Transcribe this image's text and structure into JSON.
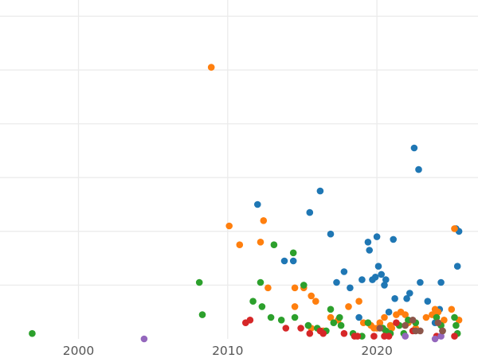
{
  "chart_data": {
    "type": "scatter",
    "title": "",
    "xlabel": "",
    "ylabel": "",
    "xlim": [
      1995,
      2027.5
    ],
    "ylim": [
      0,
      6.3
    ],
    "x_ticks": [
      2000,
      2010,
      2020
    ],
    "x_tick_labels": [
      "2000",
      "2010",
      "2020"
    ],
    "x_gridlines": [
      2000,
      2010,
      2020
    ],
    "y_gridlines": [
      1,
      2,
      3,
      4,
      5,
      6
    ],
    "y_tick_labels_visible": false,
    "legend": "none",
    "series": [
      {
        "name": "blue",
        "color": "#1f77b4",
        "points": [
          [
            2012.0,
            2.5
          ],
          [
            2013.8,
            1.45
          ],
          [
            2014.4,
            1.45
          ],
          [
            2015.5,
            2.35
          ],
          [
            2016.2,
            2.75
          ],
          [
            2016.9,
            1.95
          ],
          [
            2017.3,
            1.05
          ],
          [
            2017.8,
            1.25
          ],
          [
            2018.2,
            0.95
          ],
          [
            2019.0,
            1.1
          ],
          [
            2019.4,
            1.8
          ],
          [
            2019.5,
            1.65
          ],
          [
            2019.9,
            1.15
          ],
          [
            2020.0,
            1.9
          ],
          [
            2020.1,
            1.35
          ],
          [
            2020.3,
            1.2
          ],
          [
            2020.5,
            1.0
          ],
          [
            2020.6,
            1.1
          ],
          [
            2020.8,
            0.5
          ],
          [
            2021.1,
            1.85
          ],
          [
            2021.2,
            0.75
          ],
          [
            2022.0,
            0.75
          ],
          [
            2022.2,
            0.85
          ],
          [
            2022.5,
            3.55
          ],
          [
            2022.8,
            3.15
          ],
          [
            2022.9,
            1.05
          ],
          [
            2023.4,
            0.7
          ],
          [
            2023.9,
            0.3
          ],
          [
            2024.2,
            0.55
          ],
          [
            2024.3,
            1.05
          ],
          [
            2025.3,
            2.05
          ],
          [
            2025.4,
            1.35
          ],
          [
            2025.5,
            2.0
          ],
          [
            2019.7,
            1.1
          ],
          [
            2018.8,
            0.4
          ]
        ]
      },
      {
        "name": "orange",
        "color": "#ff7f0e",
        "points": [
          [
            2008.9,
            5.05
          ],
          [
            2010.1,
            2.1
          ],
          [
            2010.8,
            1.75
          ],
          [
            2012.2,
            1.8
          ],
          [
            2012.4,
            2.2
          ],
          [
            2012.7,
            0.95
          ],
          [
            2014.5,
            0.95
          ],
          [
            2014.5,
            0.6
          ],
          [
            2015.1,
            0.95
          ],
          [
            2015.6,
            0.8
          ],
          [
            2015.9,
            0.7
          ],
          [
            2015.6,
            0.2
          ],
          [
            2016.4,
            0.15
          ],
          [
            2016.9,
            0.4
          ],
          [
            2017.4,
            0.35
          ],
          [
            2018.1,
            0.6
          ],
          [
            2018.8,
            0.7
          ],
          [
            2019.1,
            0.3
          ],
          [
            2019.6,
            0.25
          ],
          [
            2019.8,
            0.2
          ],
          [
            2020.0,
            0.2
          ],
          [
            2020.2,
            0.3
          ],
          [
            2020.5,
            0.4
          ],
          [
            2020.9,
            0.25
          ],
          [
            2021.3,
            0.45
          ],
          [
            2021.6,
            0.5
          ],
          [
            2021.9,
            0.45
          ],
          [
            2022.1,
            0.3
          ],
          [
            2022.6,
            0.2
          ],
          [
            2023.3,
            0.4
          ],
          [
            2023.9,
            0.55
          ],
          [
            2024.1,
            0.5
          ],
          [
            2024.5,
            0.35
          ],
          [
            2025.0,
            0.55
          ],
          [
            2025.2,
            2.05
          ],
          [
            2025.5,
            0.35
          ],
          [
            2023.7,
            0.45
          ],
          [
            2021.0,
            0.2
          ]
        ]
      },
      {
        "name": "green",
        "color": "#2ca02c",
        "points": [
          [
            1996.9,
            0.1
          ],
          [
            2008.1,
            1.05
          ],
          [
            2008.3,
            0.45
          ],
          [
            2011.7,
            0.7
          ],
          [
            2012.2,
            1.05
          ],
          [
            2012.3,
            0.6
          ],
          [
            2012.9,
            0.4
          ],
          [
            2013.1,
            1.75
          ],
          [
            2013.6,
            0.35
          ],
          [
            2014.4,
            1.6
          ],
          [
            2014.5,
            0.4
          ],
          [
            2015.1,
            1.0
          ],
          [
            2015.4,
            0.25
          ],
          [
            2016.0,
            0.2
          ],
          [
            2016.6,
            0.15
          ],
          [
            2016.9,
            0.55
          ],
          [
            2017.1,
            0.3
          ],
          [
            2017.5,
            0.4
          ],
          [
            2017.6,
            0.25
          ],
          [
            2018.4,
            0.1
          ],
          [
            2019.0,
            0.05
          ],
          [
            2019.4,
            0.3
          ],
          [
            2020.4,
            0.2
          ],
          [
            2020.6,
            0.15
          ],
          [
            2020.9,
            0.1
          ],
          [
            2021.5,
            0.25
          ],
          [
            2022.1,
            0.35
          ],
          [
            2022.6,
            0.3
          ],
          [
            2024.0,
            0.4
          ],
          [
            2024.3,
            0.25
          ],
          [
            2024.4,
            0.15
          ],
          [
            2025.2,
            0.4
          ],
          [
            2025.3,
            0.25
          ],
          [
            2025.4,
            0.1
          ],
          [
            2021.8,
            0.1
          ]
        ]
      },
      {
        "name": "red",
        "color": "#d62728",
        "points": [
          [
            2011.2,
            0.3
          ],
          [
            2011.5,
            0.35
          ],
          [
            2013.9,
            0.2
          ],
          [
            2014.9,
            0.2
          ],
          [
            2015.5,
            0.1
          ],
          [
            2016.2,
            0.15
          ],
          [
            2016.4,
            0.1
          ],
          [
            2017.8,
            0.1
          ],
          [
            2018.5,
            0.05
          ],
          [
            2018.7,
            0.05
          ],
          [
            2019.8,
            0.05
          ],
          [
            2020.5,
            0.05
          ],
          [
            2020.8,
            0.05
          ],
          [
            2021.3,
            0.3
          ],
          [
            2024.0,
            0.05
          ],
          [
            2025.2,
            0.05
          ],
          [
            2022.4,
            0.15
          ]
        ]
      },
      {
        "name": "purple",
        "color": "#9467bd",
        "points": [
          [
            2004.4,
            0.0
          ],
          [
            2021.9,
            0.05
          ],
          [
            2024.3,
            0.05
          ],
          [
            2023.9,
            0.0
          ]
        ]
      },
      {
        "name": "brown",
        "color": "#8c564b",
        "points": [
          [
            2020.2,
            0.2
          ],
          [
            2021.9,
            0.25
          ],
          [
            2022.4,
            0.35
          ],
          [
            2022.6,
            0.15
          ],
          [
            2022.9,
            0.15
          ],
          [
            2024.4,
            0.15
          ],
          [
            2024.1,
            0.3
          ]
        ]
      }
    ]
  }
}
